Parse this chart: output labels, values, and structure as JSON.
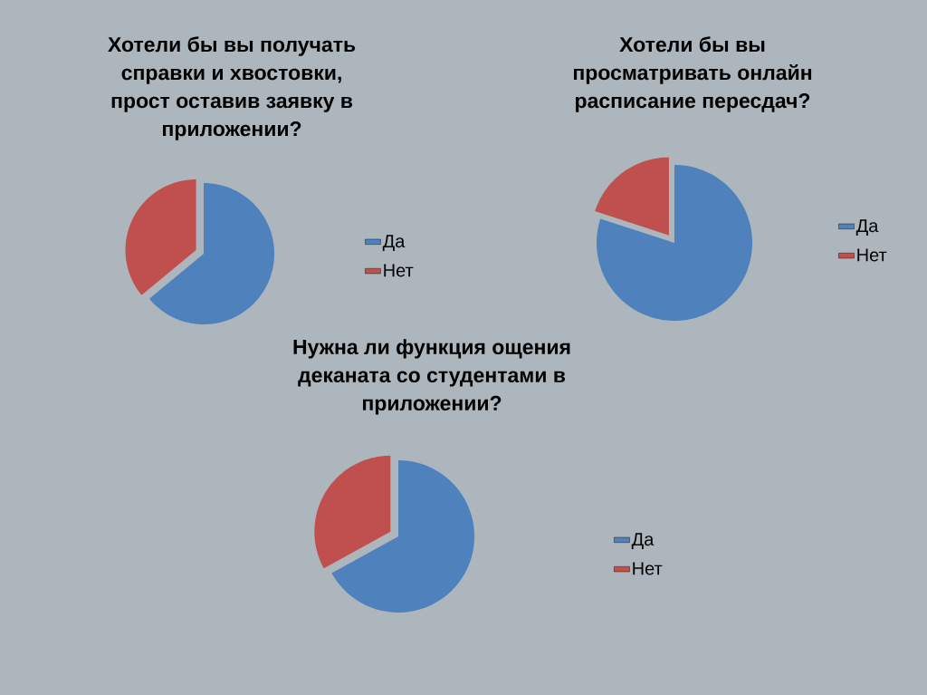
{
  "chart_data": [
    {
      "type": "pie",
      "title": "Хотели бы вы получать справки и хвостовки, прост оставив заявку в приложении?",
      "categories": [
        "Да",
        "Нет"
      ],
      "values": [
        64,
        36
      ],
      "colors": [
        "#4f81bd",
        "#c0504d"
      ],
      "legend": "right"
    },
    {
      "type": "pie",
      "title": "Хотели бы вы просматривать онлайн расписание пересдач?",
      "categories": [
        "Да",
        "Нет"
      ],
      "values": [
        80,
        20
      ],
      "colors": [
        "#4f81bd",
        "#c0504d"
      ],
      "legend": "right"
    },
    {
      "type": "pie",
      "title": "Нужна ли функция ощения деканата со студентами в приложении?",
      "categories": [
        "Да",
        "Нет"
      ],
      "values": [
        67,
        33
      ],
      "colors": [
        "#4f81bd",
        "#c0504d"
      ],
      "legend": "right"
    }
  ]
}
